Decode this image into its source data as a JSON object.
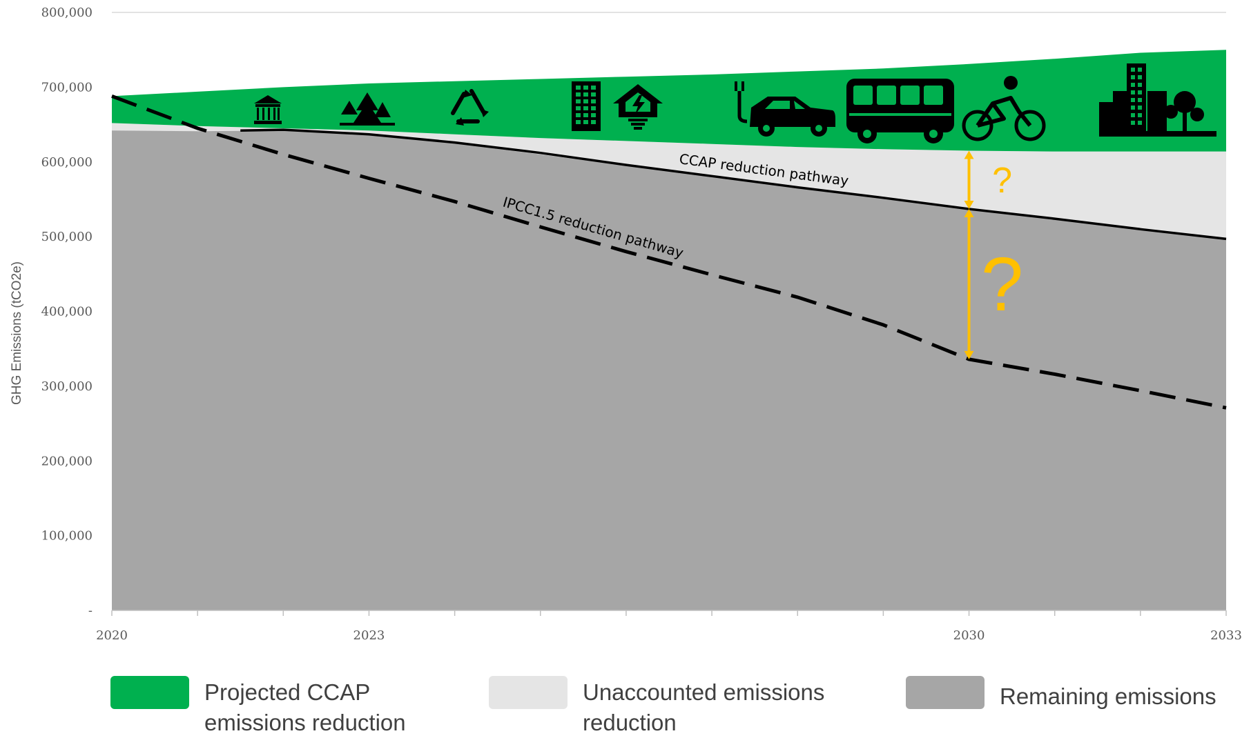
{
  "chart_data": {
    "type": "area",
    "title": "",
    "xlabel": "",
    "ylabel": "GHG Emissions (tCO2e)",
    "x_ticks": [
      "2020",
      "2023",
      "2030",
      "2033"
    ],
    "xlim": [
      2020,
      2033
    ],
    "ylim": [
      0,
      800000
    ],
    "y_ticks": [
      "-",
      "100,000",
      "200,000",
      "300,000",
      "400,000",
      "500,000",
      "600,000",
      "700,000",
      "800,000"
    ],
    "grid": "horizontal top line only",
    "series": [
      {
        "name": "Projected CCAP emissions reduction",
        "color": "#00B04F",
        "upper": [
          [
            2020,
            688000
          ],
          [
            2021,
            694000
          ],
          [
            2022,
            700000
          ],
          [
            2023,
            705000
          ],
          [
            2024,
            708000
          ],
          [
            2025,
            711000
          ],
          [
            2026,
            714000
          ],
          [
            2027,
            717000
          ],
          [
            2028,
            721000
          ],
          [
            2029,
            725000
          ],
          [
            2030,
            731000
          ],
          [
            2031,
            738000
          ],
          [
            2032,
            746000
          ],
          [
            2033,
            750000
          ]
        ],
        "lower": [
          [
            2020,
            652000
          ],
          [
            2021,
            648000
          ],
          [
            2022,
            645000
          ],
          [
            2023,
            642000
          ],
          [
            2024,
            637000
          ],
          [
            2025,
            632000
          ],
          [
            2026,
            628000
          ],
          [
            2027,
            624000
          ],
          [
            2028,
            620000
          ],
          [
            2029,
            617000
          ],
          [
            2030,
            615000
          ],
          [
            2031,
            614000
          ],
          [
            2032,
            614000
          ],
          [
            2033,
            614000
          ]
        ]
      },
      {
        "name": "Unaccounted emissions reduction",
        "color": "#E5E5E5",
        "upper": "lower edge of Projected CCAP emissions reduction",
        "lower": "CCAP reduction pathway"
      },
      {
        "name": "Remaining emissions",
        "color": "#A6A6A6",
        "values": [
          [
            2020,
            642000
          ],
          [
            2021,
            641000
          ],
          [
            2022,
            642000
          ],
          [
            2023,
            636000
          ],
          [
            2024,
            625000
          ],
          [
            2025,
            610000
          ],
          [
            2026,
            595000
          ],
          [
            2027,
            580000
          ],
          [
            2028,
            566000
          ],
          [
            2029,
            552000
          ],
          [
            2030,
            537000
          ],
          [
            2031,
            524000
          ],
          [
            2032,
            510000
          ],
          [
            2033,
            497000
          ]
        ]
      }
    ],
    "lines": [
      {
        "name": "CCAP reduction pathway",
        "style": "solid",
        "color": "#000000",
        "values": [
          [
            2021.5,
            642000
          ],
          [
            2022,
            643000
          ],
          [
            2023,
            637000
          ],
          [
            2024,
            626000
          ],
          [
            2025,
            612000
          ],
          [
            2026,
            596000
          ],
          [
            2027,
            581000
          ],
          [
            2028,
            566000
          ],
          [
            2029,
            552000
          ],
          [
            2030,
            537000
          ],
          [
            2031,
            524000
          ],
          [
            2032,
            510000
          ],
          [
            2033,
            497000
          ]
        ]
      },
      {
        "name": "IPCC1.5 reduction pathway",
        "style": "dashed",
        "color": "#000000",
        "values": [
          [
            2020,
            688000
          ],
          [
            2021,
            645000
          ],
          [
            2022,
            610000
          ],
          [
            2023,
            578000
          ],
          [
            2024,
            547000
          ],
          [
            2025,
            513000
          ],
          [
            2026,
            480000
          ],
          [
            2027,
            449000
          ],
          [
            2028,
            419000
          ],
          [
            2029,
            382000
          ],
          [
            2030,
            336000
          ],
          [
            2031,
            316000
          ],
          [
            2032,
            294000
          ],
          [
            2033,
            271000
          ]
        ]
      }
    ],
    "annotations": [
      {
        "text": "?",
        "color": "#FFC000",
        "size": "small",
        "x": 2030,
        "from": 615000,
        "to": 537000
      },
      {
        "text": "?",
        "color": "#FFC000",
        "size": "large",
        "x": 2030,
        "from": 537000,
        "to": 336000
      }
    ],
    "icons": [
      "government-building-icon",
      "trees-icon",
      "recycle-icon",
      "apartment-building-icon",
      "energy-home-icon",
      "electric-car-icon",
      "bus-icon",
      "cyclist-icon",
      "city-skyline-icon"
    ],
    "legend_position": "bottom",
    "legend": [
      {
        "label": "Projected CCAP emissions reduction",
        "color": "#00B04F"
      },
      {
        "label": "Unaccounted emissions reduction",
        "color": "#E5E5E5"
      },
      {
        "label": "Remaining emissions",
        "color": "#A6A6A6"
      }
    ]
  }
}
